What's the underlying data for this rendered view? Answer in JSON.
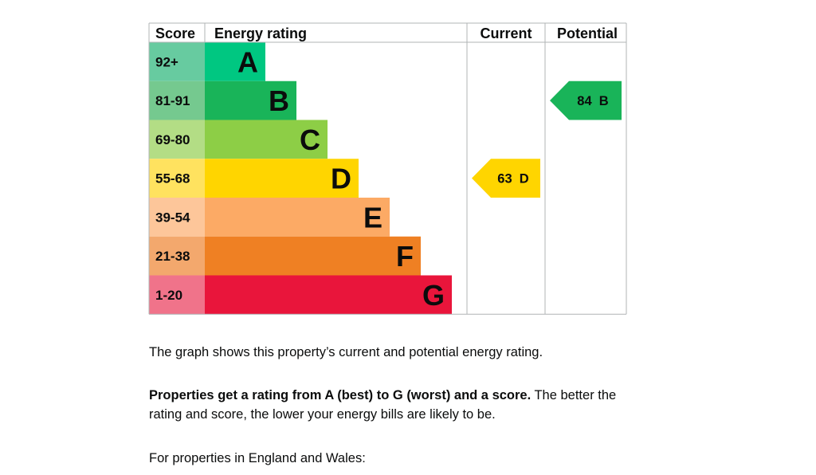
{
  "chart_data": {
    "type": "table",
    "headers": {
      "score": "Score",
      "rating": "Energy rating",
      "current": "Current",
      "potential": "Potential"
    },
    "bands": [
      {
        "letter": "A",
        "range": "92+",
        "bar_color": "#00c781",
        "score_bg": "#67cba0"
      },
      {
        "letter": "B",
        "range": "81-91",
        "bar_color": "#19b459",
        "score_bg": "#75c98f"
      },
      {
        "letter": "C",
        "range": "69-80",
        "bar_color": "#8dce46",
        "score_bg": "#b3dd85"
      },
      {
        "letter": "D",
        "range": "55-68",
        "bar_color": "#ffd500",
        "score_bg": "#ffe25f"
      },
      {
        "letter": "E",
        "range": "39-54",
        "bar_color": "#fcaa65",
        "score_bg": "#fdc69a"
      },
      {
        "letter": "F",
        "range": "21-38",
        "bar_color": "#ef8023",
        "score_bg": "#f3a86d"
      },
      {
        "letter": "G",
        "range": "1-20",
        "bar_color": "#e9153b",
        "score_bg": "#f0738a"
      }
    ],
    "current": {
      "score": 63,
      "band": "D",
      "label": "63  D"
    },
    "potential": {
      "score": 84,
      "band": "B",
      "label": "84  B"
    }
  },
  "text": {
    "p1": "The graph shows this property’s current and potential energy rating.",
    "p2_bold": "Properties get a rating from A (best) to G (worst) and a score.",
    "p2_rest": " The better the rating and score, the lower your energy bills are likely to be.",
    "p3": "For properties in England and Wales:"
  }
}
